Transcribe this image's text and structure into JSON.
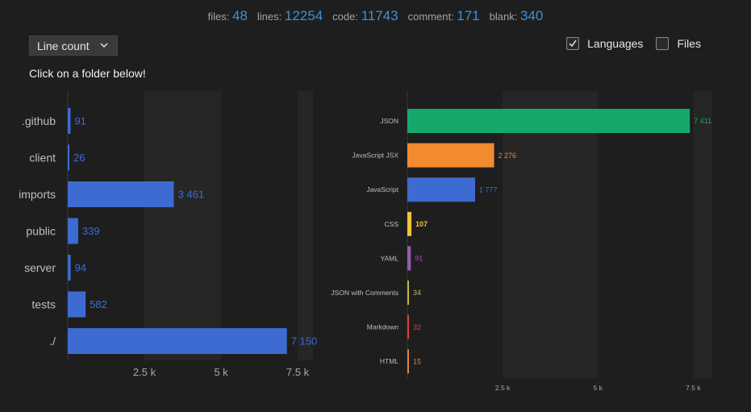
{
  "stats": [
    {
      "label": "files:",
      "value": "48"
    },
    {
      "label": "lines:",
      "value": "12254"
    },
    {
      "label": "code:",
      "value": "11743"
    },
    {
      "label": "comment:",
      "value": "171"
    },
    {
      "label": "blank:",
      "value": "340"
    }
  ],
  "controls": {
    "metric_select": "Line count",
    "languages_label": "Languages",
    "languages_checked": true,
    "files_label": "Files",
    "files_checked": false
  },
  "hint": "Click on a folder below!",
  "chart_data": [
    {
      "type": "bar",
      "orientation": "horizontal",
      "categories": [
        ".github",
        "client",
        "imports",
        "public",
        "server",
        "tests",
        "./"
      ],
      "values": [
        91,
        26,
        3461,
        339,
        94,
        582,
        7150
      ],
      "value_labels": [
        "91",
        "26",
        "3 461",
        "339",
        "94",
        "582",
        "7 150"
      ],
      "color": "#3d6bd1",
      "xlim": [
        0,
        8000
      ],
      "ticks": [
        2500,
        5000,
        7500
      ],
      "tick_labels": [
        "2.5 k",
        "5 k",
        "7.5 k"
      ]
    },
    {
      "type": "bar",
      "orientation": "horizontal",
      "categories": [
        "JSON",
        "JavaScript JSX",
        "JavaScript",
        "CSS",
        "YAML",
        "JSON with Comments",
        "Markdown",
        "HTML"
      ],
      "values": [
        7411,
        2276,
        1777,
        107,
        91,
        34,
        32,
        15
      ],
      "value_labels": [
        "7 411",
        "2 276",
        "1 777",
        "107",
        "91",
        "34",
        "32",
        "15"
      ],
      "colors": [
        "#16a86a",
        "#f28a2e",
        "#3d6bd1",
        "#f5c23a",
        "#9659b5",
        "#c9b43a",
        "#d94040",
        "#d9853a"
      ],
      "xlim": [
        0,
        8000
      ],
      "ticks": [
        2500,
        5000,
        7500
      ],
      "tick_labels": [
        "2.5 k",
        "5 k",
        "7.5 k"
      ]
    }
  ]
}
